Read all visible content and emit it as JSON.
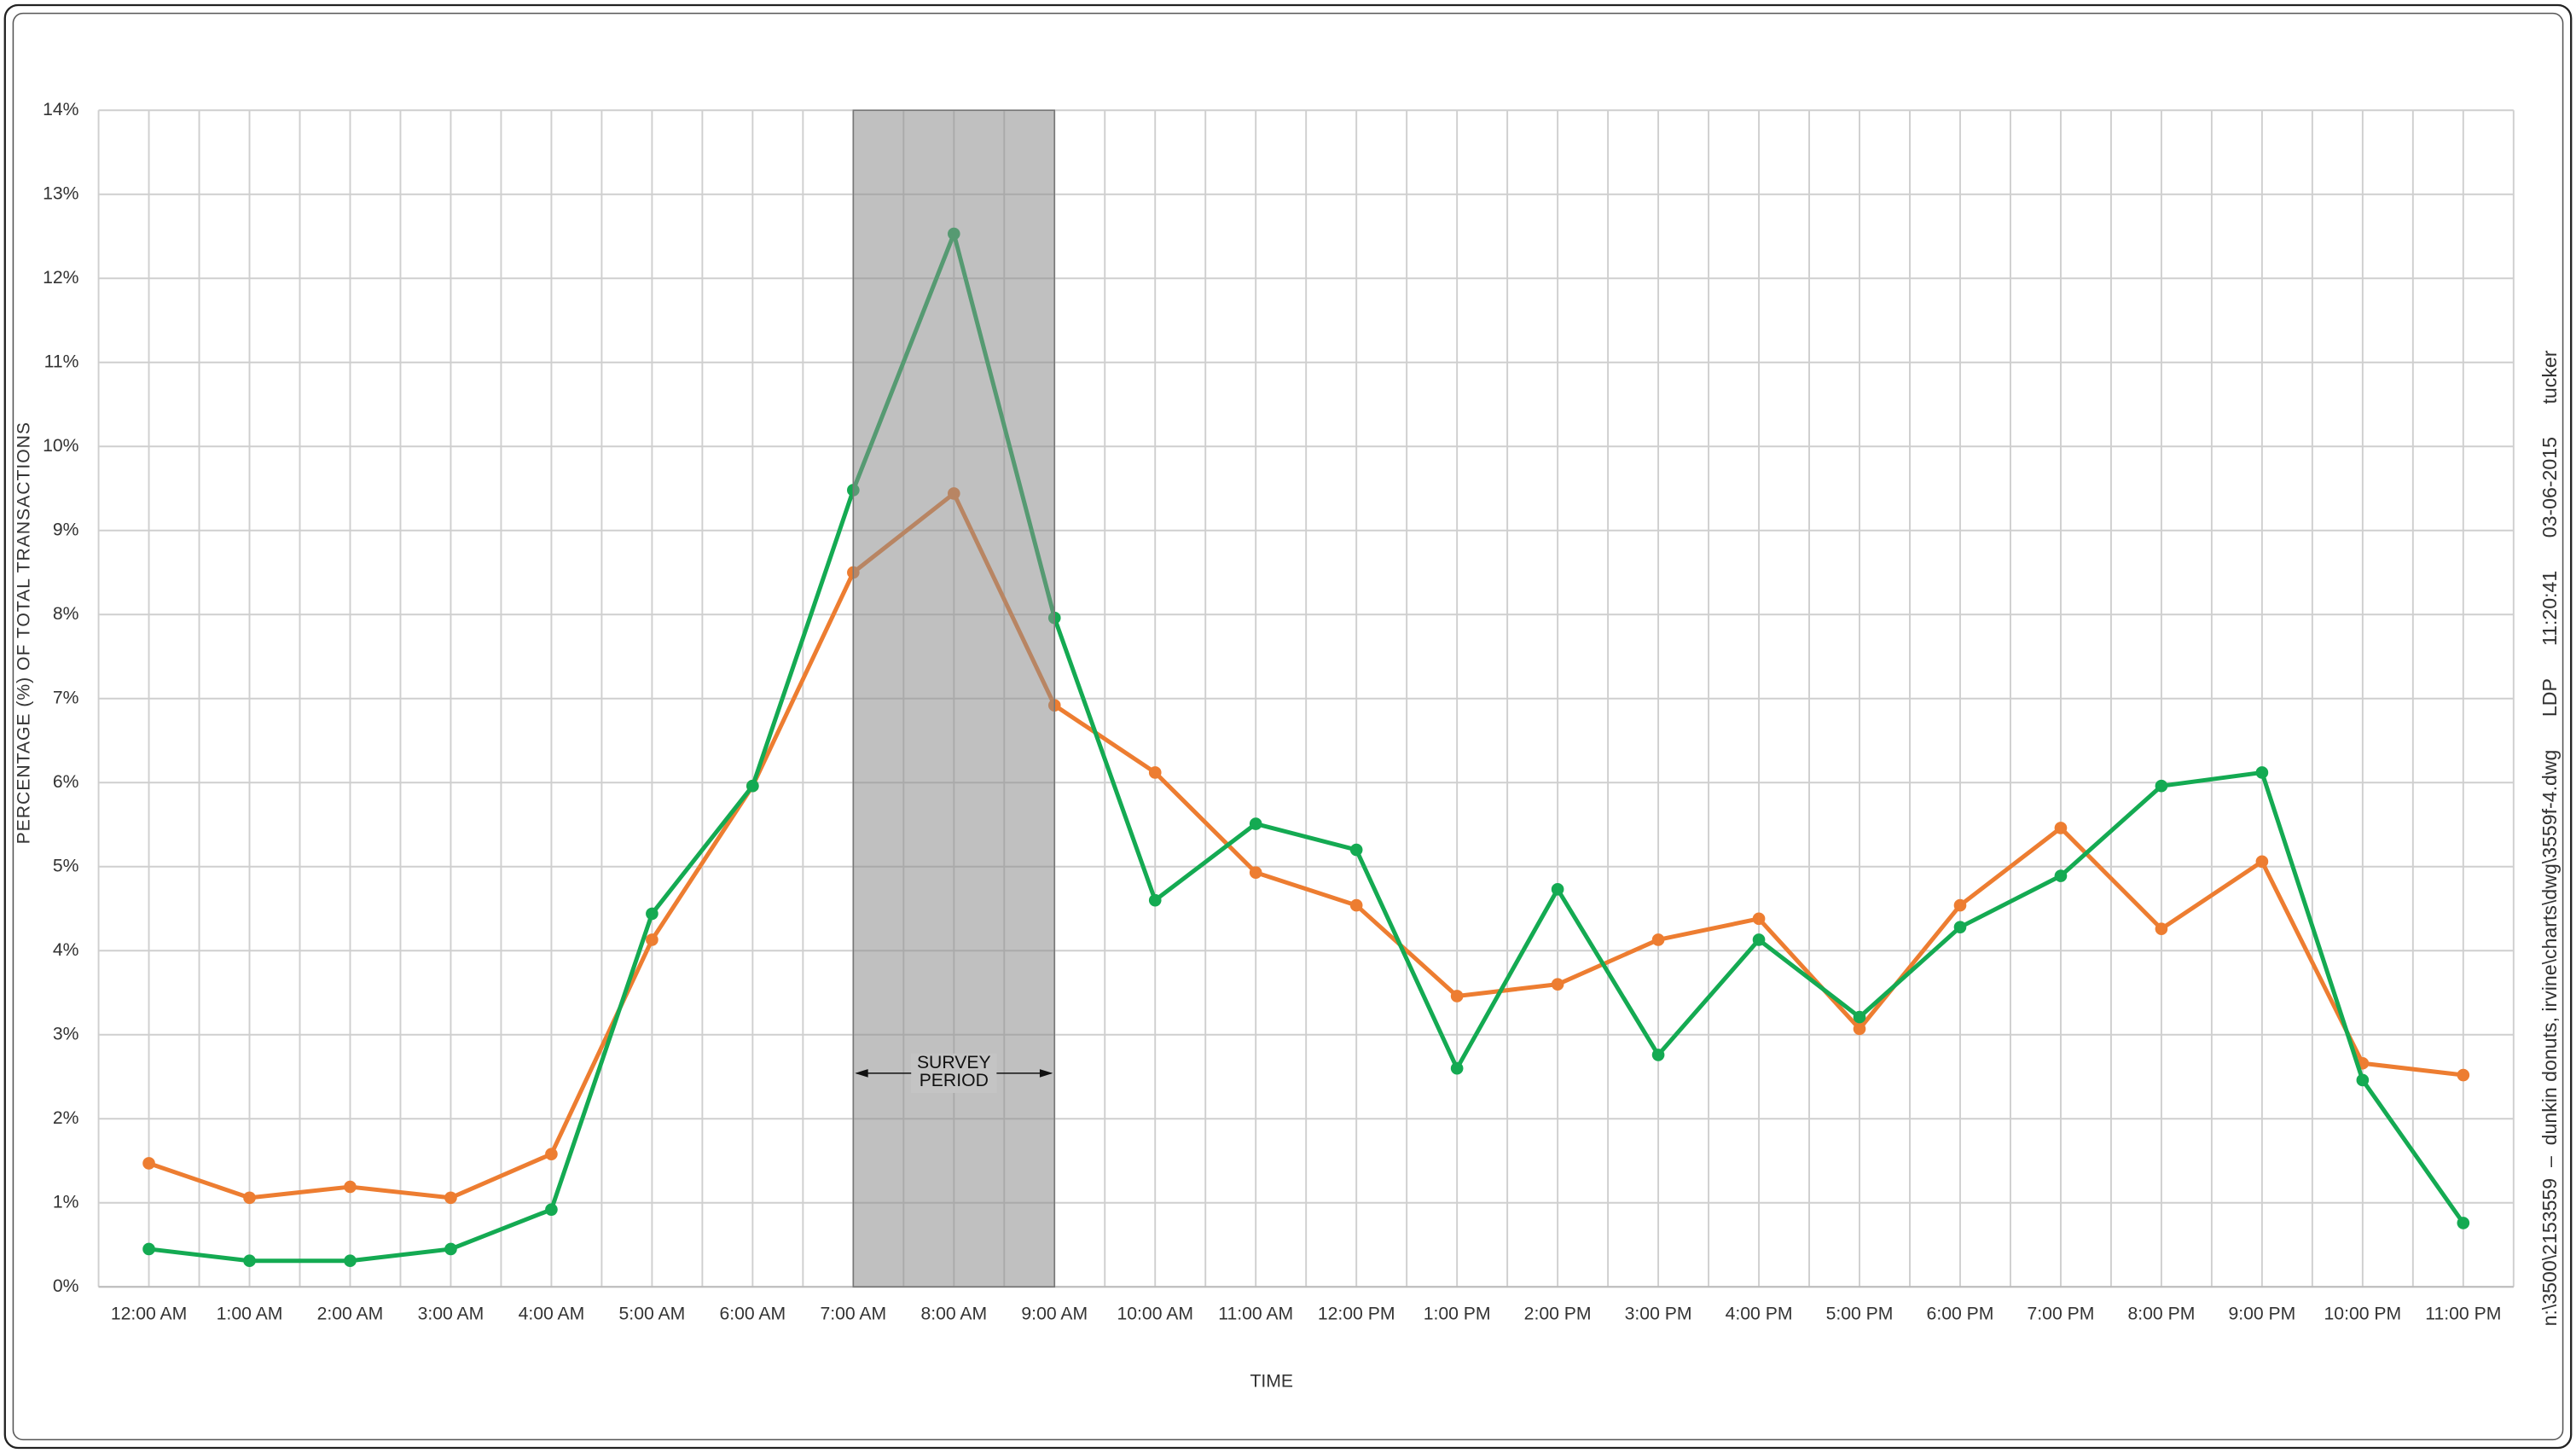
{
  "chart_data": {
    "type": "line",
    "xlabel": "TIME",
    "ylabel": "PERCENTAGE (%) OF TOTAL TRANSACTIONS",
    "categories": [
      "12:00 AM",
      "1:00 AM",
      "2:00 AM",
      "3:00 AM",
      "4:00 AM",
      "5:00 AM",
      "6:00 AM",
      "7:00 AM",
      "8:00 AM",
      "9:00 AM",
      "10:00 AM",
      "11:00 AM",
      "12:00 PM",
      "1:00 PM",
      "2:00 PM",
      "3:00 PM",
      "4:00 PM",
      "5:00 PM",
      "6:00 PM",
      "7:00 PM",
      "8:00 PM",
      "9:00 PM",
      "10:00 PM",
      "11:00 PM"
    ],
    "series": [
      {
        "color": "#ed7d31",
        "values": [
          1.47,
          1.06,
          1.19,
          1.06,
          1.58,
          4.13,
          5.96,
          8.5,
          9.44,
          6.92,
          6.12,
          4.93,
          4.54,
          3.46,
          3.6,
          4.13,
          4.38,
          3.07,
          4.54,
          5.46,
          4.26,
          5.06,
          2.66,
          2.52
        ]
      },
      {
        "color": "#14aa52",
        "values": [
          0.45,
          0.31,
          0.31,
          0.45,
          0.92,
          4.44,
          5.96,
          9.48,
          12.53,
          7.96,
          4.6,
          5.51,
          5.2,
          2.6,
          4.73,
          2.76,
          4.13,
          3.21,
          4.28,
          4.89,
          5.96,
          6.12,
          2.46,
          0.76
        ]
      }
    ],
    "ylim": [
      0,
      14
    ],
    "yticks": [
      {
        "value": 0,
        "label": "0%"
      },
      {
        "value": 1,
        "label": "1%"
      },
      {
        "value": 2,
        "label": "2%"
      },
      {
        "value": 3,
        "label": "3%"
      },
      {
        "value": 4,
        "label": "4%"
      },
      {
        "value": 5,
        "label": "5%"
      },
      {
        "value": 6,
        "label": "6%"
      },
      {
        "value": 7,
        "label": "7%"
      },
      {
        "value": 8,
        "label": "8%"
      },
      {
        "value": 9,
        "label": "9%"
      },
      {
        "value": 10,
        "label": "10%"
      },
      {
        "value": 11,
        "label": "11%"
      },
      {
        "value": 12,
        "label": "12%"
      },
      {
        "value": 13,
        "label": "13%"
      },
      {
        "value": 14,
        "label": "14%"
      }
    ],
    "grid": true,
    "highlight": {
      "from": "7:00 AM",
      "to": "9:00 AM",
      "label": [
        "SURVEY",
        "PERIOD"
      ]
    },
    "side_note": "n:\\3500\\2153559  –  dunkin donuts, irvine\\charts\\dwg\\3559f-4.dwg      LDP      11:20:41      03-06-2015      tucker"
  }
}
